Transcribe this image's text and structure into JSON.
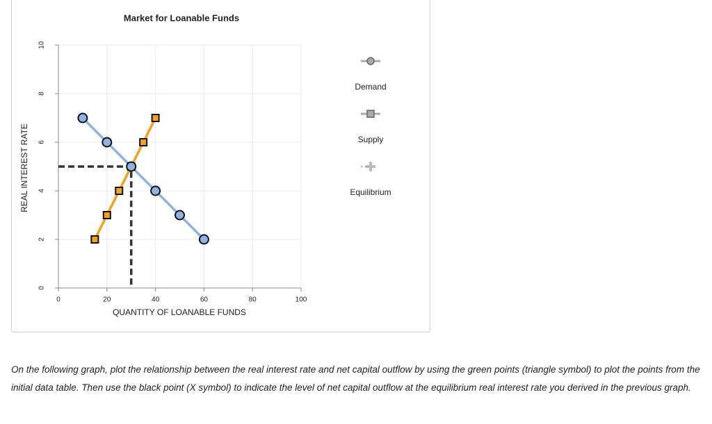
{
  "chart_data": {
    "type": "line",
    "title": "Market for Loanable Funds",
    "x_label": "QUANTITY OF LOANABLE FUNDS",
    "y_label": "REAL INTEREST RATE",
    "xlim": [
      0,
      100
    ],
    "xticks": [
      0,
      20,
      40,
      60,
      80,
      100
    ],
    "ylim": [
      0,
      10
    ],
    "yticks": [
      0,
      2,
      4,
      6,
      8,
      10
    ],
    "grid": true,
    "series": [
      {
        "name": "Demand",
        "color": "#8db3e2",
        "marker": "circle",
        "x": [
          10,
          20,
          30,
          40,
          50,
          60
        ],
        "values": [
          7,
          6,
          5,
          4,
          3,
          2
        ]
      },
      {
        "name": "Supply",
        "color": "#f5a11c",
        "marker": "square",
        "x": [
          15,
          20,
          25,
          30,
          35,
          40
        ],
        "values": [
          2,
          3,
          4,
          5,
          6,
          7
        ]
      },
      {
        "name": "Equilibrium",
        "color": "#333333",
        "marker": "dropline",
        "x": [
          30
        ],
        "values": [
          5
        ]
      }
    ]
  },
  "instructions": "On the following graph, plot the relationship between the real interest rate and net capital outflow by using the green points (triangle symbol) to plot the points from the initial data table. Then use the black point (X symbol) to indicate the level of net capital outflow at the equilibrium real interest rate you derived in the previous graph."
}
